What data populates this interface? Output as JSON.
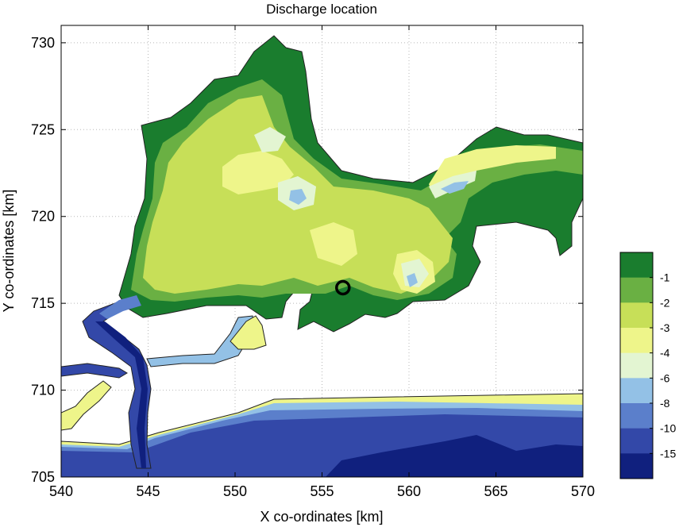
{
  "chart_data": {
    "type": "heatmap",
    "title": "Discharge location",
    "xlabel": "X co-ordinates [km]",
    "ylabel": "Y co-ordinates [km]",
    "xlim": [
      540,
      570
    ],
    "ylim": [
      705,
      731
    ],
    "xticks": [
      "540",
      "545",
      "550",
      "555",
      "560",
      "565",
      "570"
    ],
    "yticks": [
      "705",
      "710",
      "715",
      "720",
      "725",
      "730"
    ],
    "grid": true,
    "discharge_point": {
      "x": 556.2,
      "y": 715.9
    },
    "colorbar": {
      "labels": [
        "-1",
        "-2",
        "-3",
        "-4",
        "-6",
        "-8",
        "-10",
        "-15"
      ],
      "colors": [
        "#1a7d2e",
        "#6ab043",
        "#c7df58",
        "#eef58a",
        "#e3f5d2",
        "#93c1e6",
        "#5b7fcb",
        "#3348a8",
        "#10207e"
      ]
    }
  }
}
